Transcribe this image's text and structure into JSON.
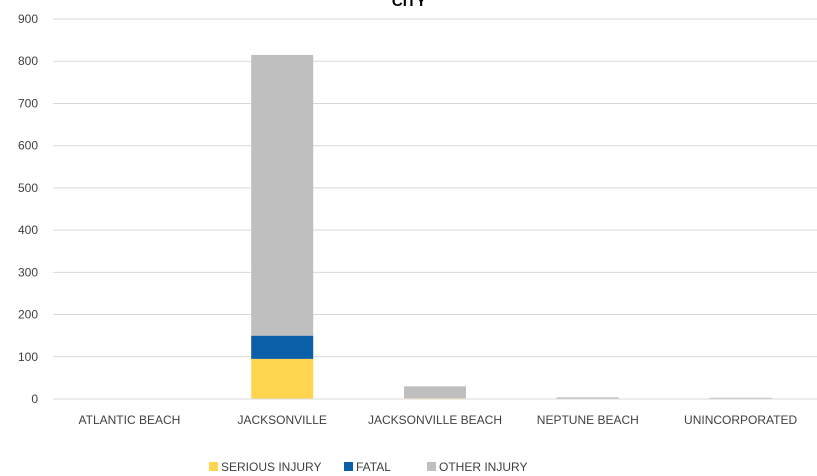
{
  "chart_data": {
    "type": "bar",
    "stacked": true,
    "title": "CITY",
    "categories": [
      "ATLANTIC BEACH",
      "JACKSONVILLE",
      "JACKSONVILLE BEACH",
      "NEPTUNE BEACH",
      "UNINCORPORATED"
    ],
    "series": [
      {
        "name": "SERIOUS INJURY",
        "color": "#FFD54F",
        "values": [
          0,
          95,
          2,
          0,
          0
        ]
      },
      {
        "name": "FATAL",
        "color": "#0B5EA8",
        "values": [
          0,
          55,
          0,
          0,
          0
        ]
      },
      {
        "name": "OTHER INJURY",
        "color": "#BFBFBF",
        "values": [
          1,
          665,
          28,
          4,
          3
        ]
      }
    ],
    "ylim": [
      0,
      900
    ],
    "yticks": [
      "0",
      "100",
      "200",
      "300",
      "400",
      "500",
      "600",
      "700",
      "800",
      "900"
    ],
    "grid": true,
    "legend_position": "bottom"
  }
}
